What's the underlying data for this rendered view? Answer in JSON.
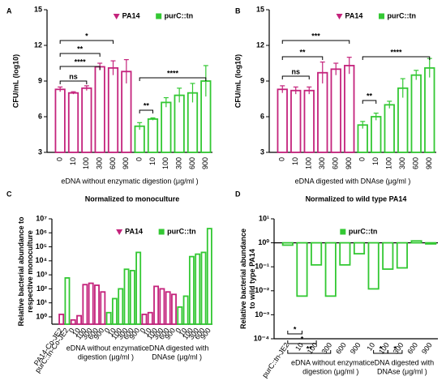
{
  "chart_data": [
    {
      "panel": "A",
      "type": "bar",
      "ylabel": "CFU/mL (log10)",
      "xlabel": "eDNA without enzymatic digestion (μg/ml )",
      "categories": [
        "0",
        "10",
        "100",
        "300",
        "600",
        "900",
        "0",
        "10",
        "100",
        "300",
        "600",
        "900"
      ],
      "series": [
        {
          "name": "PA14",
          "color": "#c4237c",
          "values": [
            8.3,
            8.0,
            8.4,
            10.2,
            10.1,
            9.8,
            null,
            null,
            null,
            null,
            null,
            null
          ],
          "errors": [
            0.2,
            0.1,
            0.2,
            0.3,
            0.6,
            1.0,
            null,
            null,
            null,
            null,
            null,
            null
          ]
        },
        {
          "name": "purC::tn",
          "color": "#33c833",
          "values": [
            null,
            null,
            null,
            null,
            null,
            null,
            5.2,
            5.8,
            7.2,
            7.8,
            8.0,
            9.0
          ],
          "errors": [
            null,
            null,
            null,
            null,
            null,
            null,
            0.3,
            0.1,
            0.4,
            0.6,
            0.8,
            1.3
          ]
        }
      ],
      "ylim": [
        3,
        15
      ],
      "yticks": [
        3,
        6,
        9,
        12,
        15
      ],
      "annotations": [
        "*",
        "**",
        "****",
        "ns",
        "****",
        "**"
      ]
    },
    {
      "panel": "B",
      "type": "bar",
      "ylabel": "CFU/mL (log10)",
      "xlabel": "eDNA digested with DNAse (μg/ml )",
      "categories": [
        "0",
        "10",
        "100",
        "300",
        "600",
        "900",
        "0",
        "10",
        "100",
        "300",
        "600",
        "900"
      ],
      "series": [
        {
          "name": "PA14",
          "color": "#c4237c",
          "values": [
            8.3,
            8.2,
            8.2,
            9.7,
            10.0,
            10.3,
            null,
            null,
            null,
            null,
            null,
            null
          ],
          "errors": [
            0.3,
            0.3,
            0.3,
            0.9,
            0.5,
            0.7,
            null,
            null,
            null,
            null,
            null,
            null
          ]
        },
        {
          "name": "purC::tn",
          "color": "#33c833",
          "values": [
            null,
            null,
            null,
            null,
            null,
            null,
            5.3,
            6.0,
            7.0,
            8.4,
            9.5,
            10.1
          ],
          "errors": [
            null,
            null,
            null,
            null,
            null,
            null,
            0.3,
            0.3,
            0.3,
            0.8,
            0.4,
            0.8
          ]
        }
      ],
      "ylim": [
        3,
        15
      ],
      "yticks": [
        3,
        6,
        9,
        12,
        15
      ],
      "annotations": [
        "***",
        "**",
        "ns",
        "****",
        "**"
      ]
    },
    {
      "panel": "C",
      "type": "bar",
      "title": "Normalized to monoculture",
      "log_scale": true,
      "ylabel": [
        "Relative bacterial abundance to",
        "respective monoculture"
      ],
      "group_labels": [
        [
          "eDNA without enzymatic",
          "digestion (μg/ml )"
        ],
        [
          "eDNA digested with",
          "DNAse (μg/ml )"
        ]
      ],
      "categories": [
        "PA14-Co-JE2",
        "purC::tn-Co-JE2",
        "0",
        "10",
        "100",
        "300",
        "600",
        "900",
        "0",
        "10",
        "100",
        "300",
        "600",
        "900",
        "0",
        "10",
        "100",
        "300",
        "600",
        "900",
        "0",
        "10",
        "100",
        "300",
        "600",
        "900"
      ],
      "series": [
        {
          "name": "PA14",
          "color": "#c4237c",
          "values": [
            1.5,
            null,
            0.6,
            1.2,
            200,
            250,
            180,
            60,
            null,
            null,
            null,
            null,
            null,
            null,
            1.5,
            2,
            150,
            100,
            60,
            40,
            null,
            null,
            null,
            null,
            null,
            null
          ]
        },
        {
          "name": "purC::tn",
          "color": "#33c833",
          "values": [
            null,
            600,
            null,
            null,
            null,
            null,
            null,
            null,
            2,
            20,
            100,
            2500,
            2000,
            40000,
            null,
            null,
            null,
            null,
            null,
            null,
            5,
            30,
            20000,
            30000,
            40000,
            2000000
          ]
        }
      ],
      "ylim": [
        0.3,
        10000000
      ],
      "yticks": [
        {
          "value": 1,
          "label": "10⁰"
        },
        {
          "value": 10,
          "label": "10¹"
        },
        {
          "value": 100,
          "label": "10²"
        },
        {
          "value": 1000,
          "label": "10³"
        },
        {
          "value": 10000,
          "label": "10⁴"
        },
        {
          "value": 100000,
          "label": "10⁵"
        },
        {
          "value": 1000000,
          "label": "10⁶"
        },
        {
          "value": 10000000,
          "label": "10⁷"
        }
      ]
    },
    {
      "panel": "D",
      "type": "bar",
      "title": "Normalized to wild type PA14",
      "log_scale": true,
      "reference_line": 1,
      "ylabel": [
        "Relative bacterial abundance",
        "to wild type PA14"
      ],
      "group_labels": [
        [
          "eDNA without enzymatic",
          "digestion (μg/ml )"
        ],
        [
          "eDNA digested with",
          "DNAse (μg/ml )"
        ]
      ],
      "categories": [
        "purC::tn-JE2",
        "10",
        "100",
        "300",
        "600",
        "900",
        "10",
        "100",
        "300",
        "600",
        "900"
      ],
      "series": [
        {
          "name": "purC::tn",
          "color": "#33c833",
          "values": [
            0.8,
            0.006,
            0.12,
            0.006,
            0.12,
            0.35,
            0.012,
            0.08,
            0.09,
            1.2,
            0.9
          ]
        }
      ],
      "ylim": [
        0.0001,
        10
      ],
      "yticks": [
        {
          "value": 0.0001,
          "label": "10⁻⁴"
        },
        {
          "value": 0.001,
          "label": "10⁻³"
        },
        {
          "value": 0.01,
          "label": "10⁻²"
        },
        {
          "value": 0.1,
          "label": "10⁻¹"
        },
        {
          "value": 1,
          "label": "10⁰"
        },
        {
          "value": 10,
          "label": "10¹"
        }
      ],
      "annotations": [
        "*",
        "*",
        "**",
        "*",
        "*"
      ]
    }
  ]
}
